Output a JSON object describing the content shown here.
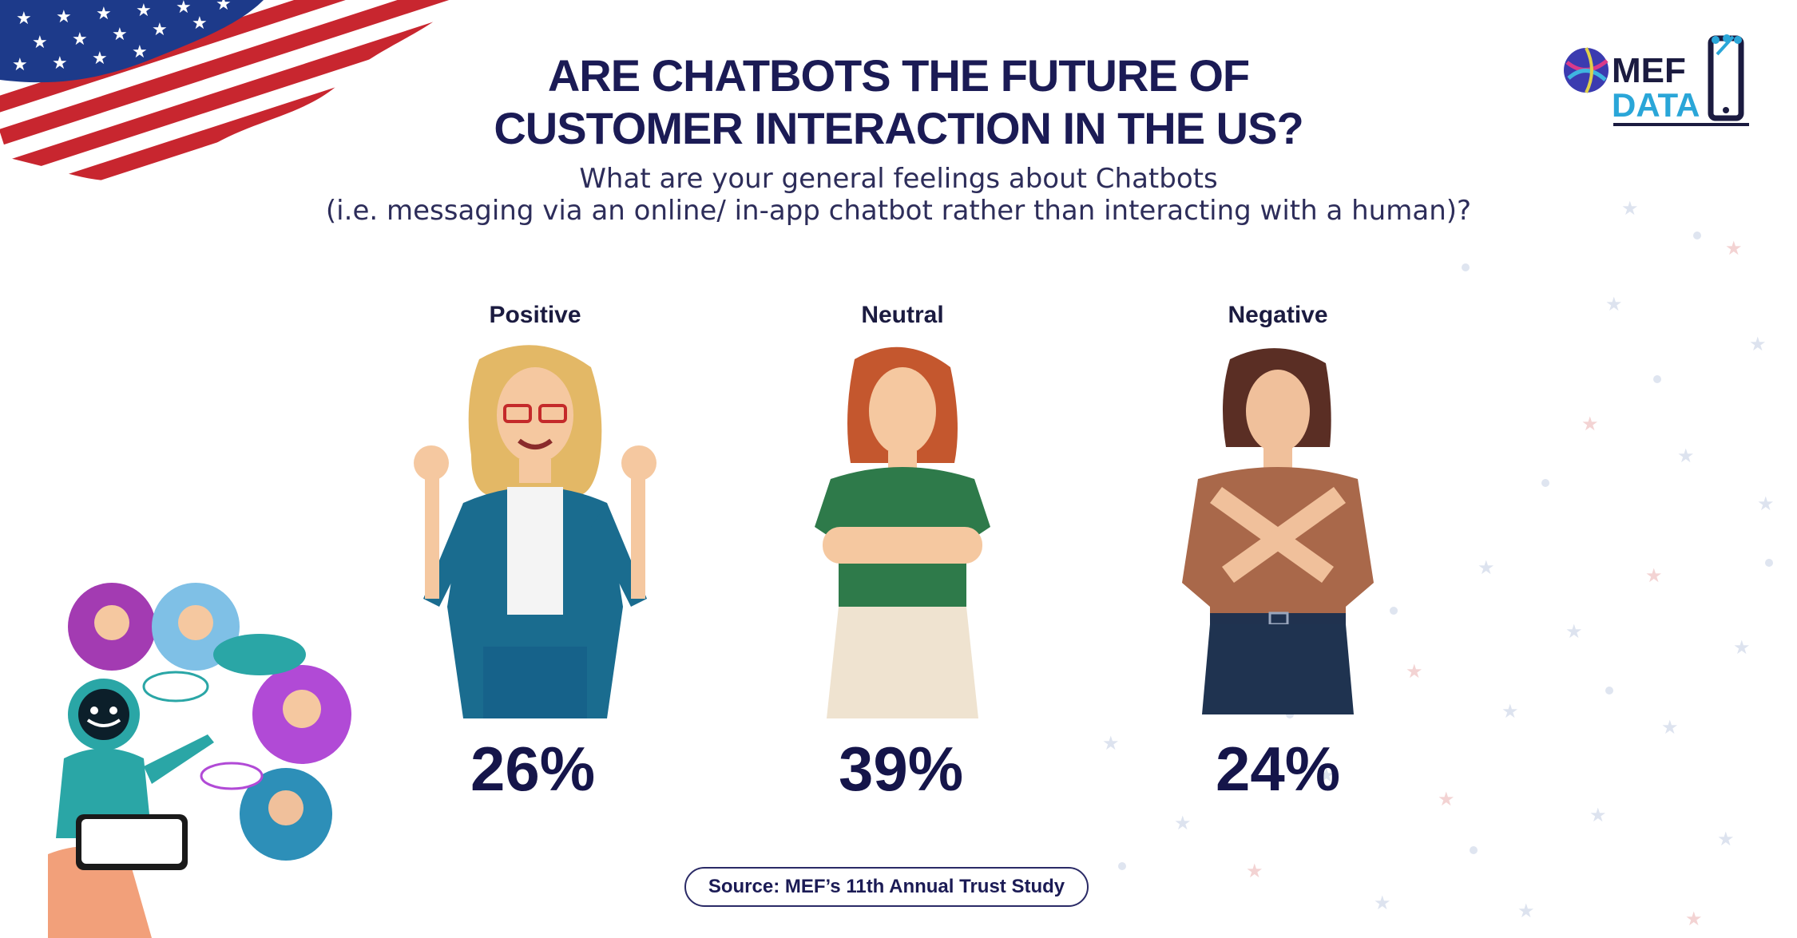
{
  "title": {
    "line1": "ARE CHATBOTS THE FUTURE OF",
    "line2": "CUSTOMER INTERACTION IN THE US?"
  },
  "subtitle": {
    "line1": "What are your general feelings about Chatbots",
    "line2": "(i.e. messaging via an online/ in-app chatbot rather than interacting with a human)?"
  },
  "logo": {
    "top": "MEF",
    "bottom": "DATA"
  },
  "source": "Source: MEF’s 11th Annual Trust Study",
  "colors": {
    "navy": "#15154a",
    "teal": "#1c8fa6",
    "flag_red": "#c8262f",
    "flag_blue": "#1d3a8a"
  },
  "chart_data": {
    "type": "bar",
    "categories": [
      "Positive",
      "Neutral",
      "Negative"
    ],
    "values": [
      26,
      39,
      24
    ],
    "labels": [
      "26%",
      "39%",
      "24%"
    ],
    "unit": "%"
  }
}
